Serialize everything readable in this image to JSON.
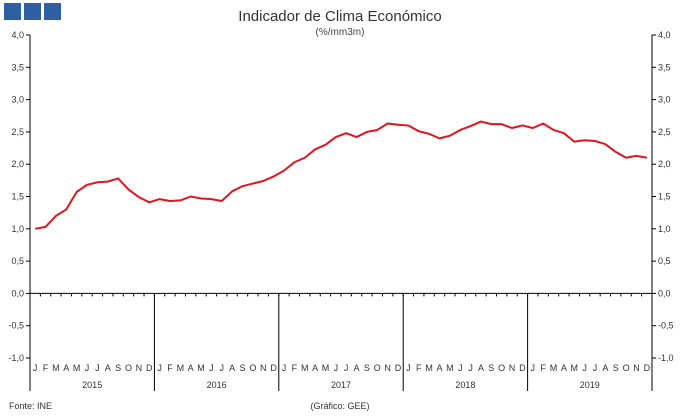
{
  "logo_label": "GEE",
  "footer": {
    "source": "Fonte: INE",
    "credit": "(Gráfico: GEE)"
  },
  "colors": {
    "series": "#e0141e",
    "axis": "#000000",
    "logo": "#2e5fa3"
  },
  "chart_data": {
    "type": "line",
    "title": "Indicador de Clima Económico",
    "subtitle": "(%/mm3m)",
    "xlabel": "",
    "ylabel": "",
    "ylim": [
      -1.0,
      4.0
    ],
    "yticks": [
      "4,0",
      "3,5",
      "3,0",
      "2,5",
      "2,0",
      "1,5",
      "1,0",
      "0,5",
      "0,0",
      "-0,5",
      "-1,0"
    ],
    "grid": false,
    "month_labels": [
      "J",
      "F",
      "M",
      "A",
      "M",
      "J",
      "J",
      "A",
      "S",
      "O",
      "N",
      "D"
    ],
    "years": [
      "2015",
      "2016",
      "2017",
      "2018",
      "2019"
    ],
    "series": [
      {
        "values": [
          1.0,
          1.03,
          1.2,
          1.3,
          1.57,
          1.68,
          1.72,
          1.73,
          1.78,
          1.61,
          1.49,
          1.41,
          1.46,
          1.43,
          1.44,
          1.5,
          1.47,
          1.46,
          1.43,
          1.58,
          1.66,
          1.7,
          1.74,
          1.81,
          1.9,
          2.03,
          2.1,
          2.23,
          2.3,
          2.42,
          2.48,
          2.42,
          2.5,
          2.53,
          2.63,
          2.61,
          2.6,
          2.51,
          2.47,
          2.4,
          2.44,
          2.53,
          2.59,
          2.66,
          2.62,
          2.62,
          2.56,
          2.6,
          2.56,
          2.63,
          2.53,
          2.48,
          2.35,
          2.37,
          2.36,
          2.31,
          2.19,
          2.1,
          2.13,
          2.1
        ]
      }
    ]
  }
}
